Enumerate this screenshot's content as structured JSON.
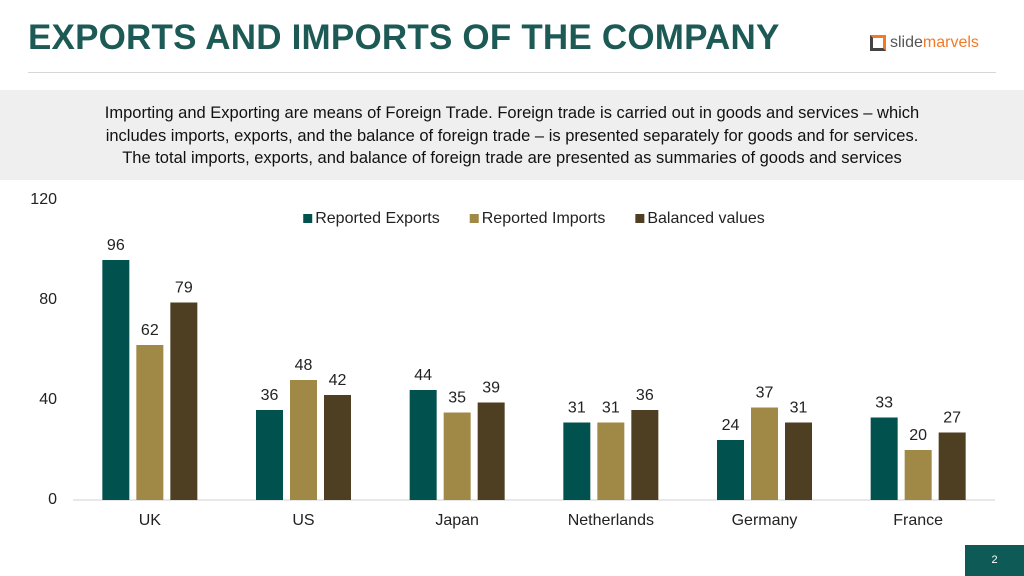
{
  "header": {
    "title": "EXPORTS AND IMPORTS OF THE COMPANY",
    "logo": {
      "prefix": "slide",
      "suffix": "marvels"
    }
  },
  "description": [
    "Importing and Exporting are means of Foreign Trade. Foreign trade is carried out in goods and services – which",
    "includes imports, exports, and the balance of foreign trade – is presented separately for goods and for services.",
    "The total imports, exports, and balance of foreign trade are presented as summaries of goods and services"
  ],
  "chart_data": {
    "type": "bar",
    "categories": [
      "UK",
      "US",
      "Japan",
      "Netherlands",
      "Germany",
      "France"
    ],
    "series": [
      {
        "name": "Reported Exports",
        "color": "#01524f",
        "values": [
          96,
          36,
          44,
          31,
          24,
          33
        ]
      },
      {
        "name": "Reported Imports",
        "color": "#a08847",
        "values": [
          62,
          48,
          35,
          31,
          37,
          20
        ]
      },
      {
        "name": "Balanced values",
        "color": "#4e3f22",
        "values": [
          79,
          42,
          39,
          36,
          31,
          27
        ]
      }
    ],
    "ylim": [
      0,
      120
    ],
    "yticks": [
      0,
      40,
      80,
      120
    ],
    "grid": false,
    "legend": "top"
  },
  "footer": {
    "page": "2"
  }
}
